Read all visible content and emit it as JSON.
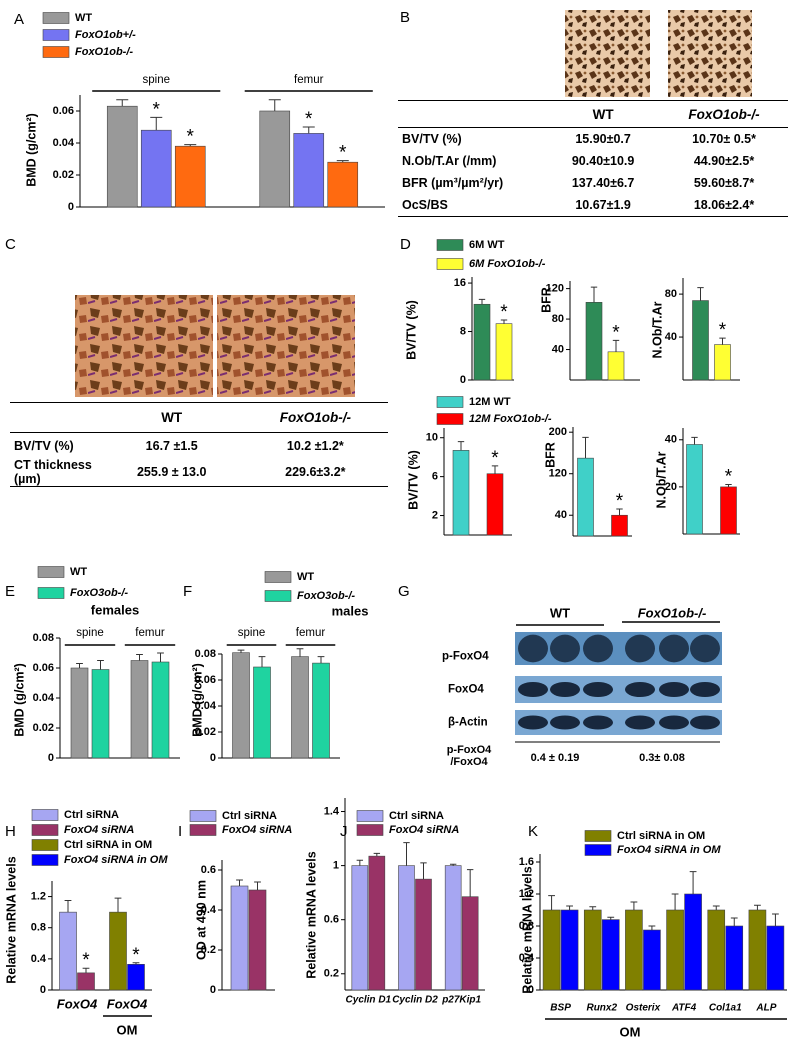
{
  "panel_labels": [
    "A",
    "B",
    "C",
    "D",
    "E",
    "F",
    "G",
    "H",
    "I",
    "J",
    "K"
  ],
  "chart_data": [
    {
      "type": "bar",
      "ylabel": "BMD (g/cm²)",
      "ylim": [
        0,
        0.07
      ],
      "yticks": [
        0,
        0.02,
        0.04,
        0.06
      ],
      "categories": [
        "spine",
        "femur"
      ],
      "series": [
        {
          "name": "WT",
          "color": "#999999",
          "values": [
            0.063,
            0.06
          ],
          "errors": [
            0.004,
            0.007
          ]
        },
        {
          "name": "FoxO1ob+/-",
          "color": "#7474f2",
          "values": [
            0.048,
            0.046
          ],
          "errors": [
            0.008,
            0.004
          ],
          "markers": [
            "*",
            "*"
          ]
        },
        {
          "name": "FoxO1ob-/-",
          "color": "#ff6a10",
          "values": [
            0.038,
            0.028
          ],
          "errors": [
            0.001,
            0.001
          ],
          "markers": [
            "*",
            "*"
          ]
        }
      ]
    },
    {
      "type": "bar",
      "series": [
        {
          "name": "6M WT",
          "color": "#2e8b57"
        },
        {
          "name": "6M FoxO1ob-/-",
          "color": "#ffff33"
        }
      ],
      "subplots": [
        {
          "ylabel": "BV/TV (%)",
          "ylim": [
            0,
            17
          ],
          "yticks": [
            0,
            8,
            16
          ],
          "values": [
            12.5,
            9.3
          ],
          "errors": [
            0.8,
            0.6
          ],
          "markers": [
            null,
            "*"
          ]
        },
        {
          "ylabel": "BFR",
          "ylim": [
            0,
            130
          ],
          "yticks": [
            40,
            80,
            120
          ],
          "values": [
            102,
            37
          ],
          "errors": [
            20,
            15
          ],
          "markers": [
            null,
            "*"
          ]
        },
        {
          "ylabel": "N.Ob/T.Ar",
          "ylim": [
            0,
            95
          ],
          "yticks": [
            40,
            80
          ],
          "values": [
            74,
            33
          ],
          "errors": [
            12,
            6
          ],
          "markers": [
            null,
            "*"
          ]
        }
      ]
    },
    {
      "type": "bar",
      "series": [
        {
          "name": "12M WT",
          "color": "#40d0c8"
        },
        {
          "name": "12M FoxO1ob-/-",
          "color": "#ff0000"
        }
      ],
      "subplots": [
        {
          "ylabel": "BV/TV (%)",
          "ylim": [
            0,
            11
          ],
          "yticks": [
            2,
            6,
            10
          ],
          "values": [
            8.7,
            6.3
          ],
          "errors": [
            0.9,
            0.8
          ],
          "markers": [
            null,
            "*"
          ]
        },
        {
          "ylabel": "BFR",
          "ylim": [
            0,
            210
          ],
          "yticks": [
            40,
            120,
            200
          ],
          "values": [
            150,
            40
          ],
          "errors": [
            40,
            12
          ],
          "markers": [
            null,
            "*"
          ]
        },
        {
          "ylabel": "N.Ob/T.Ar",
          "ylim": [
            0,
            45
          ],
          "yticks": [
            20,
            40
          ],
          "values": [
            38,
            20
          ],
          "errors": [
            3,
            1
          ],
          "markers": [
            null,
            "*"
          ]
        }
      ]
    },
    {
      "type": "bar",
      "title": "females",
      "ylabel": "BMD (g/cm²)",
      "ylim": [
        0,
        0.08
      ],
      "yticks": [
        0,
        0.02,
        0.04,
        0.06,
        0.08
      ],
      "categories": [
        "spine",
        "femur"
      ],
      "series": [
        {
          "name": "WT",
          "color": "#999999",
          "values": [
            0.06,
            0.065
          ],
          "errors": [
            0.003,
            0.004
          ]
        },
        {
          "name": "FoxO3ob-/-",
          "color": "#1fd3a0",
          "values": [
            0.059,
            0.064
          ],
          "errors": [
            0.006,
            0.006
          ]
        }
      ]
    },
    {
      "type": "bar",
      "title": "males",
      "ylabel": "BMD (g/cm²)",
      "ylim": [
        0,
        0.08
      ],
      "yticks": [
        0,
        0.02,
        0.04,
        0.06,
        0.08
      ],
      "categories": [
        "spine",
        "femur"
      ],
      "series": [
        {
          "name": "WT",
          "color": "#999999",
          "values": [
            0.081,
            0.078
          ],
          "errors": [
            0.002,
            0.006
          ]
        },
        {
          "name": "FoxO3ob-/-",
          "color": "#1fd3a0",
          "values": [
            0.07,
            0.073
          ],
          "errors": [
            0.008,
            0.005
          ]
        }
      ]
    },
    {
      "type": "bar",
      "ylabel": "Relative mRNA levels",
      "ylim": [
        0,
        1.4
      ],
      "yticks": [
        0,
        0.4,
        0.8,
        1.2
      ],
      "categories": [
        "FoxO4",
        "FoxO4"
      ],
      "xlabel": "OM",
      "series": [
        {
          "name": "Ctrl siRNA",
          "color": "#a6a6f2",
          "values": [
            1,
            null
          ],
          "errors": [
            0.15,
            null
          ]
        },
        {
          "name": "FoxO4 siRNA",
          "color": "#993366",
          "values": [
            0.22,
            null
          ],
          "errors": [
            0.06,
            null
          ],
          "markers": [
            "*",
            null
          ]
        },
        {
          "name": "Ctrl siRNA in OM",
          "color": "#808000",
          "values": [
            null,
            1
          ],
          "errors": [
            null,
            0.18
          ]
        },
        {
          "name": "FoxO4 siRNA in OM",
          "color": "#0000ff",
          "values": [
            null,
            0.33
          ],
          "errors": [
            null,
            0.02
          ],
          "markers": [
            null,
            "*"
          ]
        }
      ]
    },
    {
      "type": "bar",
      "ylabel": "OD at 490 nm",
      "ylim": [
        0,
        0.65
      ],
      "yticks": [
        0,
        0.2,
        0.4,
        0.6
      ],
      "categories": [
        null
      ],
      "series": [
        {
          "name": "Ctrl siRNA",
          "color": "#a6a6f2",
          "values": [
            0.52
          ],
          "errors": [
            0.03
          ]
        },
        {
          "name": "FoxO4 siRNA",
          "color": "#993366",
          "values": [
            0.5
          ],
          "errors": [
            0.04
          ]
        }
      ]
    },
    {
      "type": "bar",
      "ylabel": "Relative mRNA levels",
      "ylim": [
        0.08,
        1.5
      ],
      "yticks": [
        0.2,
        0.6,
        1,
        1.4
      ],
      "categories": [
        "Cyclin D1",
        "Cyclin D2",
        "p27Kip1"
      ],
      "series": [
        {
          "name": "Ctrl siRNA",
          "color": "#a6a6f2",
          "values": [
            1,
            1,
            1
          ],
          "errors": [
            0.04,
            0.17,
            0.01
          ]
        },
        {
          "name": "FoxO4 siRNA",
          "color": "#993366",
          "values": [
            1.07,
            0.9,
            0.77
          ],
          "errors": [
            0.02,
            0.12,
            0.2
          ]
        }
      ]
    },
    {
      "type": "bar",
      "ylabel": "Relative mRNA levels",
      "ylim": [
        0,
        1.7
      ],
      "yticks": [
        0,
        0.4,
        0.8,
        1.2,
        1.6
      ],
      "categories": [
        "BSP",
        "Runx2",
        "Osterix",
        "ATF4",
        "Col1a1",
        "ALP"
      ],
      "xlabel": "OM",
      "series": [
        {
          "name": "Ctrl siRNA in OM",
          "color": "#808000",
          "values": [
            1,
            1,
            1,
            1,
            1,
            1
          ],
          "errors": [
            0.18,
            0.04,
            0.1,
            0.2,
            0.05,
            0.06
          ]
        },
        {
          "name": "FoxO4 siRNA in OM",
          "color": "#0000ff",
          "values": [
            1,
            0.88,
            0.75,
            1.2,
            0.8,
            0.8
          ],
          "errors": [
            0.05,
            0.03,
            0.05,
            0.28,
            0.1,
            0.15
          ]
        }
      ]
    }
  ],
  "tables": [
    {
      "columns": [
        "WT",
        "FoxO1ob-/-"
      ],
      "rows": [
        [
          "BV/TV (%)",
          "15.90±0.7",
          "10.70± 0.5*"
        ],
        [
          "N.Ob/T.Ar (/mm)",
          "90.40±10.9",
          "44.90±2.5*"
        ],
        [
          "BFR (µm³/µm²/yr)",
          "137.40±6.7",
          "59.60±8.7*"
        ],
        [
          "OcS/BS",
          "10.67±1.9",
          "18.06±2.4*"
        ]
      ]
    },
    {
      "columns": [
        "WT",
        "FoxO1ob-/-"
      ],
      "rows": [
        [
          "BV/TV (%)",
          "16.7 ±1.5",
          "10.2 ±1.2*"
        ],
        [
          "CT thickness (µm)",
          "255.9 ± 13.0",
          "229.6±3.2*"
        ]
      ]
    }
  ],
  "blot": {
    "groups": [
      "WT",
      "FoxO1ob-/-"
    ],
    "bands": [
      "p-FoxO4",
      "FoxO4",
      "β-Actin"
    ],
    "ratio_label": "p-FoxO4 /FoxO4",
    "ratios": [
      "0.4 ± 0.19",
      "0.3± 0.08"
    ]
  }
}
